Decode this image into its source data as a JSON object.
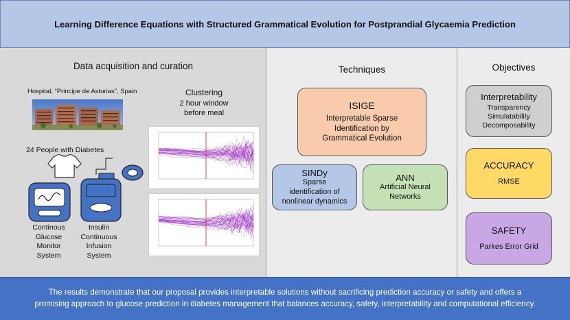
{
  "header": {
    "title": "Learning Difference Equations with Structured Grammatical Evolution for  Postprandial Glycaemia Prediction"
  },
  "data_panel": {
    "heading": "Data acquisition and curation",
    "hospital": "Hospital, “Principe de Asturias”, Spain",
    "clustering_lines": [
      "Clustering",
      "2 hour window",
      "before meal"
    ],
    "people": "24 People with Diabetes",
    "cgm_lines": [
      "Continous",
      "Glucose",
      "Monitor",
      "System"
    ],
    "insulin_lines": [
      "Insulin",
      "Continuous",
      "Infusion",
      "System"
    ]
  },
  "tech_panel": {
    "heading": "Techniques",
    "isige": {
      "title": "ISIGE",
      "lines": [
        "Interpretable Sparse",
        "Identification by",
        "Grammatical Evolution"
      ]
    },
    "sindy": {
      "title": "SINDy",
      "lines": [
        "Sparse",
        "identification of",
        "nonlinear dynamics"
      ]
    },
    "ann": {
      "title": "ANN",
      "lines": [
        "Artificial Neural",
        "Networks"
      ]
    }
  },
  "obj_panel": {
    "heading": "Objectives",
    "interpretability": {
      "title": "Interpretability",
      "lines": [
        "Transparency",
        "Simulatability",
        "Decomposability"
      ]
    },
    "accuracy": {
      "title": "ACCURACY",
      "lines": [
        "RMSE"
      ]
    },
    "safety": {
      "title": "SAFETY",
      "lines": [
        "Parkes Error Grid"
      ]
    }
  },
  "footer": {
    "lines": [
      "The results demonstrate that our proposal provides interpretable solutions without sacrificing prediction accuracy or safety and offers a",
      "promising approach to glucose prediction in diabetes management that balances accuracy, safety, interpretability and computational efficiency."
    ]
  },
  "colors": {
    "title_bg": "#b4c7e7",
    "footer_bg": "#4472c4",
    "isige": "#f8cbad",
    "sindy": "#b4c7e7",
    "ann": "#c5e0b4",
    "interpretability": "#d0cece",
    "accuracy": "#ffd966",
    "safety": "#c9a7e4",
    "device": "#4472c4",
    "curves": "#9b30c8",
    "meal_line": "#e03030"
  },
  "icons": [
    "hospital-photo",
    "tshirt-icon",
    "cgm-device-icon",
    "insulin-pump-icon",
    "infusion-set-icon"
  ]
}
